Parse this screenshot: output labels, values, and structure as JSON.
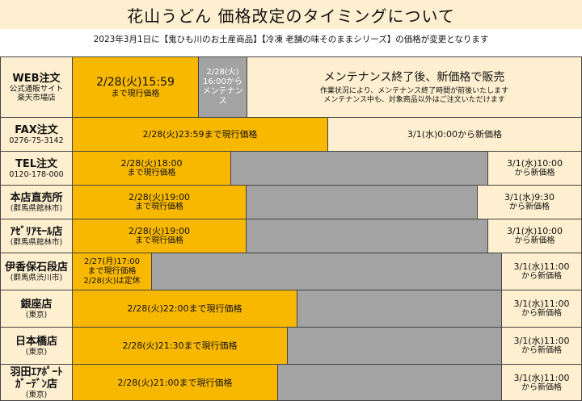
{
  "title": "花山うどん 価格改定のタイミングについて",
  "subtitle": "2023年3月1日に【鬼ひも川のお土産商品】【冷凍 老舗の味そのままシリーズ】の価格が変更となります",
  "colors": {
    "current_price": "#f9b800",
    "gap": "#a3a3a3",
    "new_price": "#fdefcf",
    "border": "#444444"
  },
  "rows": [
    {
      "name": "WEB注文",
      "sub1": "公式通販サイト",
      "sub2": "楽天市場店",
      "current_line1": "2/28(火)15:59",
      "current_line2": "まで現行価格",
      "gap_line1": "2/28(火)",
      "gap_line2": "16:00から",
      "gap_line3": "メンテナンス",
      "new_title": "メンテナンス終了後、新価格で販売",
      "new_note1": "作業状況により、メンテナンス終了時間が前後いたします",
      "new_note2": "メンテナンス中も、対象商品以外はご注文いただけます"
    },
    {
      "name": "FAX注文",
      "sub1": "0276-75-3142",
      "current_line1": "2/28(火)23:59まで現行価格",
      "new_line1": "3/1(水)0:00から新価格"
    },
    {
      "name": "TEL注文",
      "sub1": "0120-178-000",
      "current_line1": "2/28(火)18:00",
      "current_line2": "まで現行価格",
      "new_line1": "3/1(水)10:00",
      "new_line2": "から新価格"
    },
    {
      "name": "本店直売所",
      "sub1": "(群馬県館林市)",
      "current_line1": "2/28(火)19:00",
      "current_line2": "まで現行価格",
      "new_line1": "3/1(水)9:30",
      "new_line2": "から新価格"
    },
    {
      "name": "ｱｾﾞﾘｱﾓｰﾙ店",
      "sub1": "(群馬県館林市)",
      "current_line1": "2/28(火)19:00",
      "current_line2": "まで現行価格",
      "new_line1": "3/1(水)10:00",
      "new_line2": "から新価格"
    },
    {
      "name": "伊香保石段店",
      "sub1": "(群馬県渋川市)",
      "current_line1": "2/27(月)17:00",
      "current_line2": "まで現行価格",
      "current_line3": "2/28(火)は定休",
      "new_line1": "3/1(水)11:00",
      "new_line2": "から新価格"
    },
    {
      "name": "銀座店",
      "sub1": "(東京)",
      "current_line1": "2/28(火)22:00まで現行価格",
      "new_line1": "3/1(水)11:00",
      "new_line2": "から新価格"
    },
    {
      "name": "日本橋店",
      "sub1": "(東京)",
      "current_line1": "2/28(火)21:30まで現行価格",
      "new_line1": "3/1(水)11:00",
      "new_line2": "から新価格"
    },
    {
      "name": "羽田ｴｱﾎﾟｰﾄ",
      "name2": "ｶﾞｰﾃﾞﾝ店",
      "sub1": "(東京)",
      "current_line1": "2/28(火)21:00まで現行価格",
      "new_line1": "3/1(水)11:00",
      "new_line2": "から新価格"
    }
  ]
}
